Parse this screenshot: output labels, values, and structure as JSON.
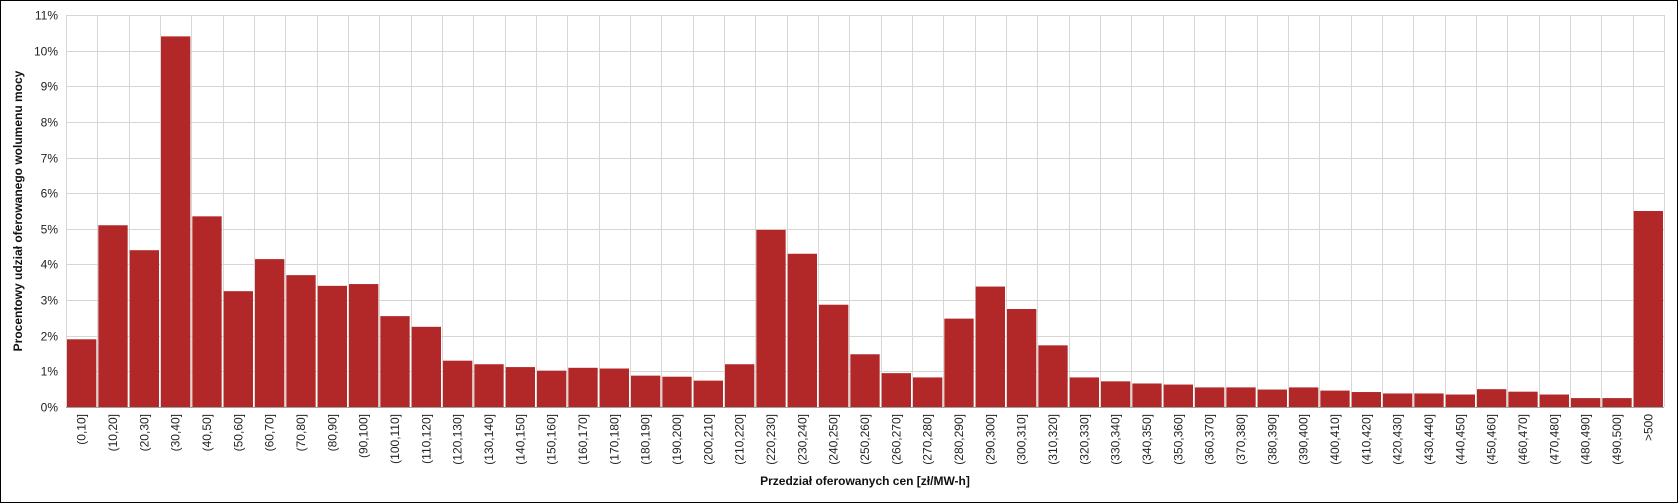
{
  "chart_data": {
    "type": "bar",
    "title": "",
    "xlabel": "Przedział oferowanych cen [zł/MW-h]",
    "ylabel": "Procentowy udział oferowanego wolumenu mocy",
    "ylim": [
      0,
      11
    ],
    "yticks": [
      "0%",
      "1%",
      "2%",
      "3%",
      "4%",
      "5%",
      "6%",
      "7%",
      "8%",
      "9%",
      "10%",
      "11%"
    ],
    "grid": true,
    "bar_color": "#b22828",
    "categories": [
      "(0,10]",
      "(10,20]",
      "(20,30]",
      "(30,40]",
      "(40,50]",
      "(50,60]",
      "(60,70]",
      "(70,80]",
      "(80,90]",
      "(90,100]",
      "(100,110]",
      "(110,120]",
      "(120,130]",
      "(130,140]",
      "(140,150]",
      "(150,160]",
      "(160,170]",
      "(170,180]",
      "(180,190]",
      "(190,200]",
      "(200,210]",
      "(210,220]",
      "(220,230]",
      "(230,240]",
      "(240,250]",
      "(250,260]",
      "(260,270]",
      "(270,280]",
      "(280,290]",
      "(290,300]",
      "(300,310]",
      "(310,320]",
      "(320,330]",
      "(330,340]",
      "(340,350]",
      "(350,360]",
      "(360,370]",
      "(370,380]",
      "(380,390]",
      "(390,400]",
      "(400,410]",
      "(410,420]",
      "(420,430]",
      "(430,440]",
      "(440,450]",
      "(450,460]",
      "(460,470]",
      "(470,480]",
      "(480,490]",
      "(490,500]",
      ">500"
    ],
    "values": [
      1.9,
      5.1,
      4.4,
      10.4,
      5.35,
      3.25,
      4.15,
      3.7,
      3.4,
      3.45,
      2.55,
      2.25,
      1.3,
      1.2,
      1.12,
      1.02,
      1.1,
      1.08,
      0.88,
      0.85,
      0.74,
      1.2,
      4.97,
      4.3,
      2.87,
      1.48,
      0.95,
      0.83,
      2.48,
      3.38,
      2.75,
      1.73,
      0.83,
      0.72,
      0.66,
      0.63,
      0.55,
      0.55,
      0.49,
      0.55,
      0.46,
      0.42,
      0.38,
      0.38,
      0.35,
      0.5,
      0.43,
      0.35,
      0.25,
      0.25,
      5.5
    ]
  }
}
